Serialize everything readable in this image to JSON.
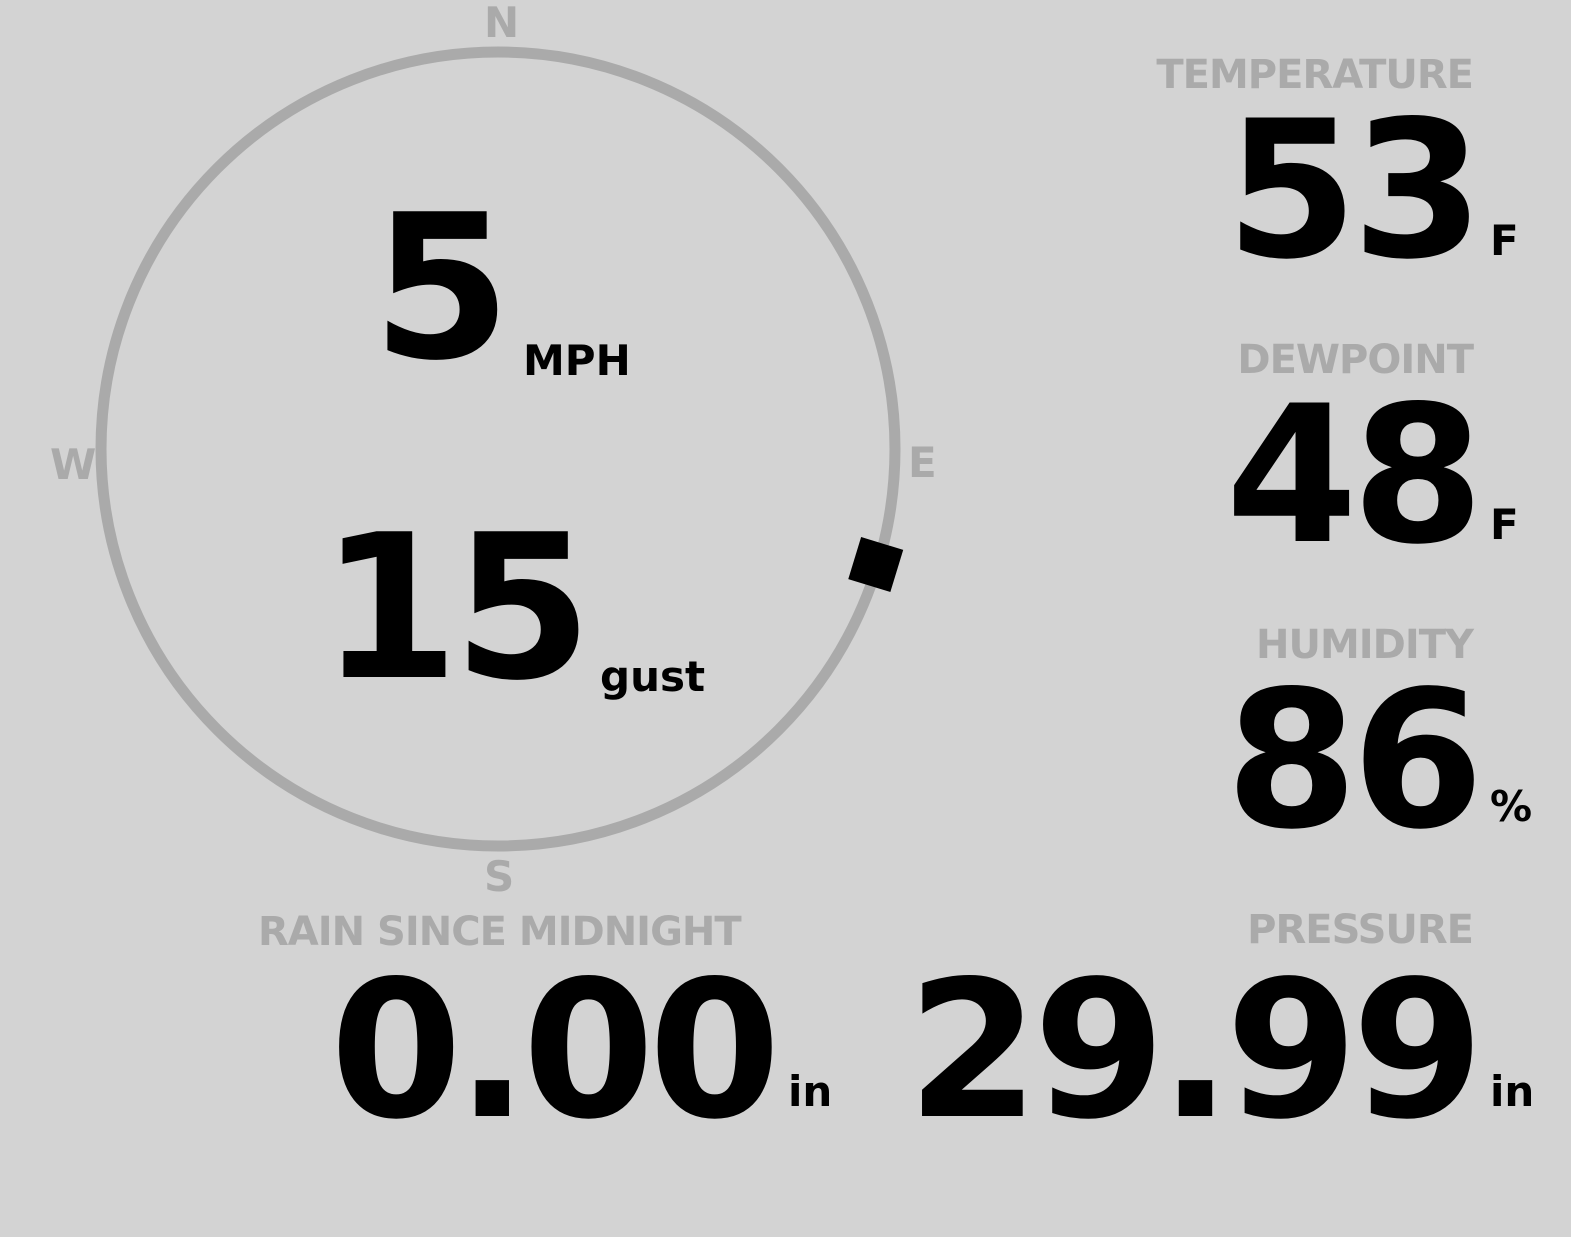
{
  "wind": {
    "speed": "5",
    "speed_unit": "MPH",
    "gust": "15",
    "gust_unit": "gust",
    "direction_deg": 107,
    "compass": {
      "n": "N",
      "e": "E",
      "s": "S",
      "w": "W"
    }
  },
  "rain": {
    "label": "RAIN SINCE MIDNIGHT",
    "value": "0.00",
    "unit": "in"
  },
  "temperature": {
    "label": "TEMPERATURE",
    "value": "53",
    "unit": "F"
  },
  "dewpoint": {
    "label": "DEWPOINT",
    "value": "48",
    "unit": "F"
  },
  "humidity": {
    "label": "HUMIDITY",
    "value": "86",
    "unit": "%"
  },
  "pressure": {
    "label": "PRESSURE",
    "value": "29.99",
    "unit": "in"
  },
  "colors": {
    "background": "#d3d3d3",
    "label": "#aaaaaa",
    "value": "#000000"
  }
}
